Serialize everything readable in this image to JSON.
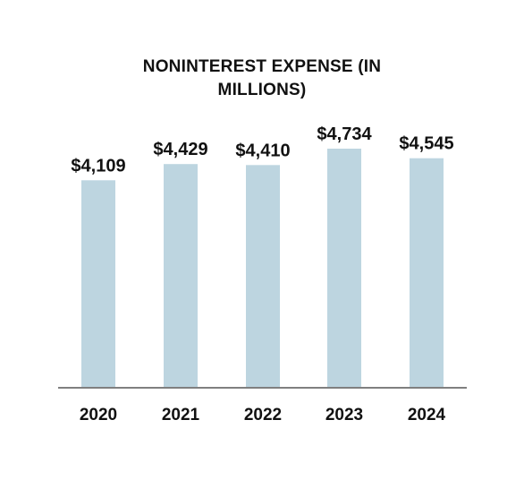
{
  "chart_data": {
    "type": "bar",
    "title": "NONINTEREST EXPENSE (IN MILLIONS)",
    "categories": [
      "2020",
      "2021",
      "2022",
      "2023",
      "2024"
    ],
    "values": [
      4109,
      4429,
      4410,
      4734,
      4545
    ],
    "data_labels": [
      "$4,109",
      "$4,429",
      "$4,410",
      "$4,734",
      "$4,545"
    ],
    "xlabel": "",
    "ylabel": "",
    "ylim": [
      0,
      4734
    ],
    "grid": false,
    "legend": "none",
    "colors": {
      "bar": "#bdd5e0",
      "axis": "#7f7f7f",
      "text": "#111111"
    }
  }
}
